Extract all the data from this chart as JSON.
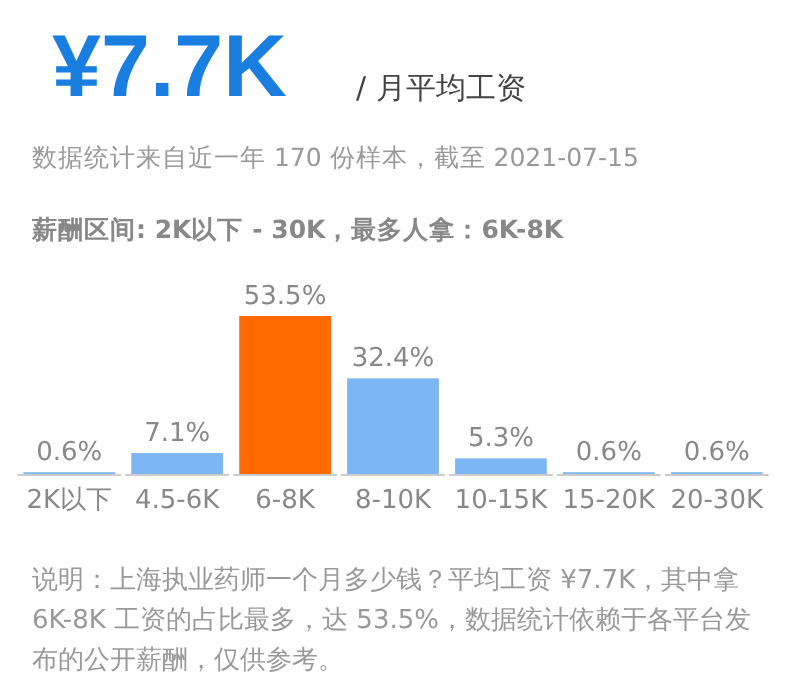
{
  "chart_data": {
    "type": "bar",
    "title": "¥7.7K",
    "subtitle": "/ 月平均工资",
    "annotations": [
      "数据统计来自近一年 170 份样本，截至 2021-07-15",
      "薪酬区间: 2K以下 - 30K，最多人拿：6K-8K",
      "说明：上海执业药师一个月多少钱？平均工资 ¥7.7K，其中拿 6K-8K 工资的占比最多，达 53.5%，数据统计依赖于各平台发布的公开薪酬，仅供参考。"
    ],
    "categories": [
      "2K以下",
      "4.5-6K",
      "6-8K",
      "8-10K",
      "10-15K",
      "15-20K",
      "20-30K"
    ],
    "values": [
      0.6,
      7.1,
      53.5,
      32.4,
      5.3,
      0.6,
      0.6
    ],
    "value_labels": [
      "0.6%",
      "7.1%",
      "53.5%",
      "32.4%",
      "5.3%",
      "0.6%",
      "0.6%"
    ],
    "colors": [
      "#7db6f5",
      "#7db6f5",
      "#ff6a00",
      "#7db6f5",
      "#7db6f5",
      "#7db6f5",
      "#7db6f5"
    ]
  }
}
